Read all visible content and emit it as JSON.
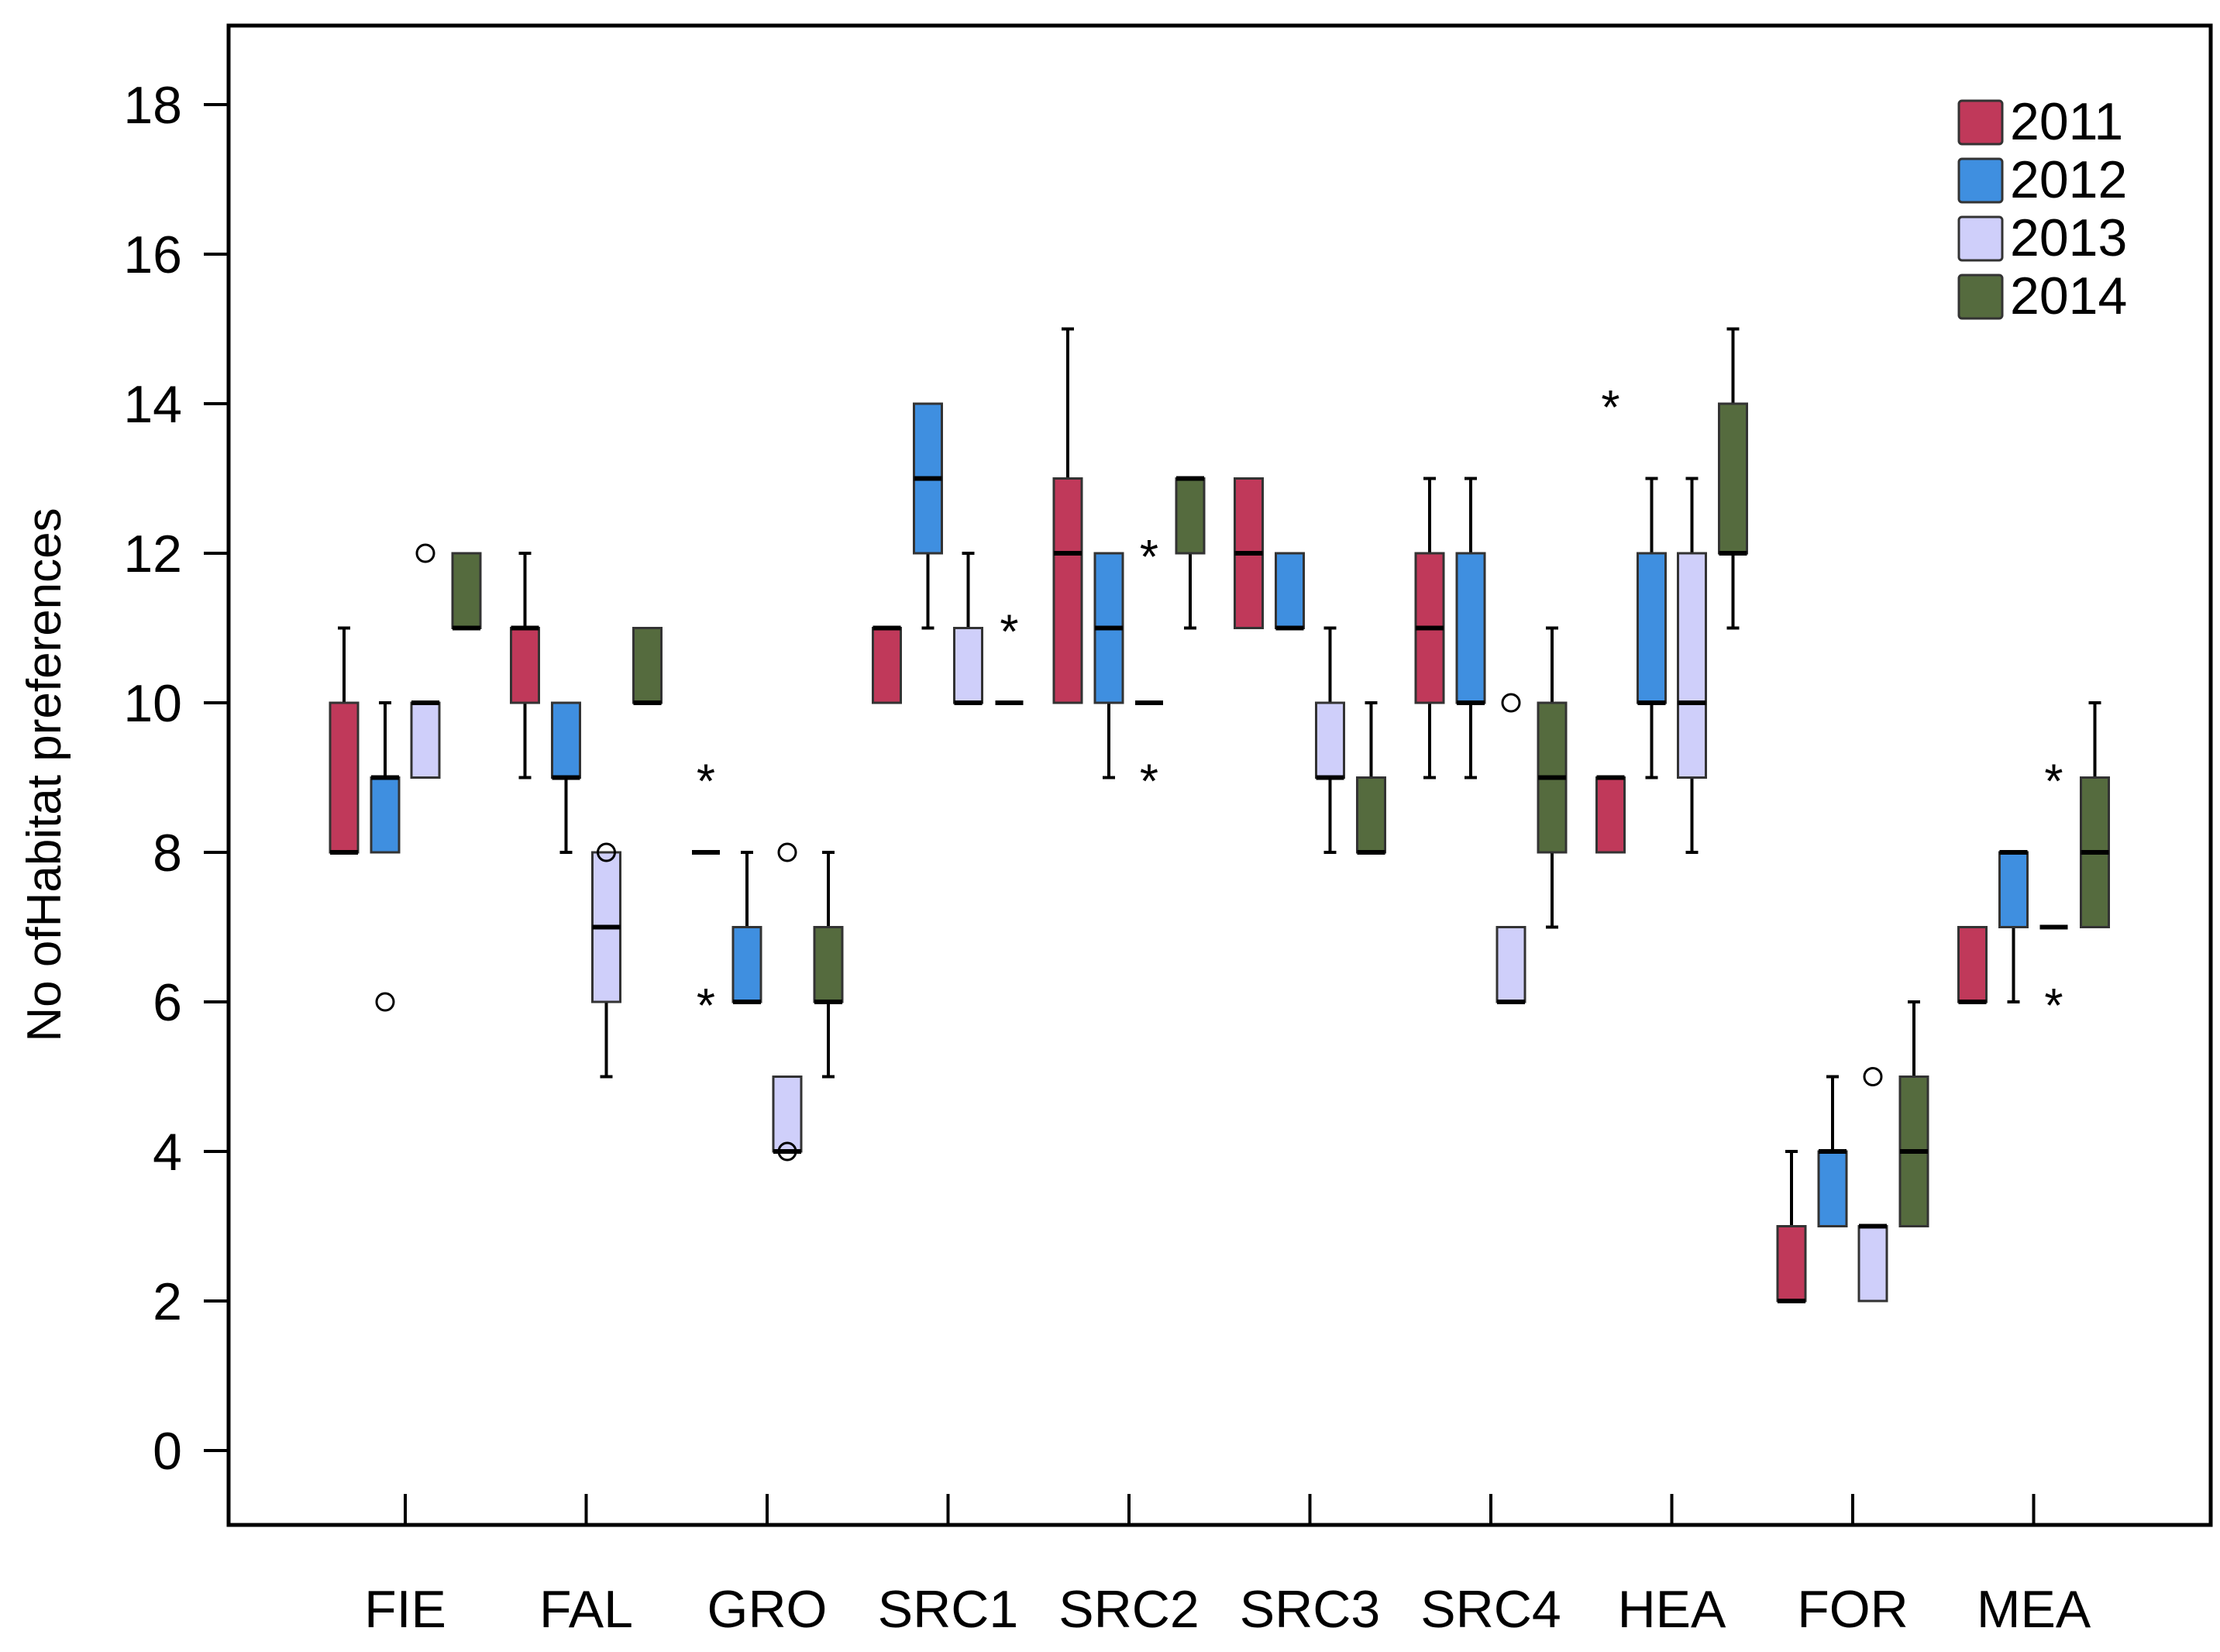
{
  "chart_data": {
    "type": "boxplot",
    "ylabel": "No ofHabitat preferences",
    "xlabel": "",
    "ylim": [
      -1,
      19
    ],
    "yticks": [
      0,
      2,
      4,
      6,
      8,
      10,
      12,
      14,
      16,
      18
    ],
    "legend_position": "top-right",
    "categories": [
      "FIE",
      "FAL",
      "GRO",
      "SRC1",
      "SRC2",
      "SRC3",
      "SRC4",
      "HEA",
      "FOR",
      "MEA"
    ],
    "series": [
      {
        "name": "2011",
        "color": "#C0395A"
      },
      {
        "name": "2012",
        "color": "#3F8FE0"
      },
      {
        "name": "2013",
        "color": "#CFCFFA"
      },
      {
        "name": "2014",
        "color": "#556B3E"
      }
    ],
    "boxes": [
      {
        "category": "FIE",
        "series": "2011",
        "whisker_low": 8,
        "q1": 8,
        "median": 8,
        "q3": 10,
        "whisker_high": 11,
        "outliers": [],
        "extremes": []
      },
      {
        "category": "FIE",
        "series": "2012",
        "whisker_low": 8,
        "q1": 8,
        "median": 9,
        "q3": 9,
        "whisker_high": 10,
        "outliers": [
          6
        ],
        "extremes": []
      },
      {
        "category": "FIE",
        "series": "2013",
        "whisker_low": 9,
        "q1": 9,
        "median": 10,
        "q3": 10,
        "whisker_high": 10,
        "outliers": [
          12
        ],
        "extremes": []
      },
      {
        "category": "FIE",
        "series": "2014",
        "whisker_low": 11,
        "q1": 11,
        "median": 11,
        "q3": 12,
        "whisker_high": 12,
        "outliers": [],
        "extremes": []
      },
      {
        "category": "FAL",
        "series": "2011",
        "whisker_low": 9,
        "q1": 10,
        "median": 11,
        "q3": 11,
        "whisker_high": 12,
        "outliers": [],
        "extremes": []
      },
      {
        "category": "FAL",
        "series": "2012",
        "whisker_low": 8,
        "q1": 9,
        "median": 9,
        "q3": 10,
        "whisker_high": 10,
        "outliers": [],
        "extremes": []
      },
      {
        "category": "FAL",
        "series": "2013",
        "whisker_low": 5,
        "q1": 6,
        "median": 7,
        "q3": 8,
        "whisker_high": 8,
        "outliers": [
          8
        ],
        "extremes": []
      },
      {
        "category": "FAL",
        "series": "2014",
        "whisker_low": 10,
        "q1": 10,
        "median": 10,
        "q3": 11,
        "whisker_high": 11,
        "outliers": [],
        "extremes": []
      },
      {
        "category": "GRO",
        "series": "2011",
        "whisker_low": 8,
        "q1": 8,
        "median": 8,
        "q3": 8,
        "whisker_high": 8,
        "outliers": [],
        "extremes": [
          9,
          6
        ]
      },
      {
        "category": "GRO",
        "series": "2012",
        "whisker_low": 6,
        "q1": 6,
        "median": 6,
        "q3": 7,
        "whisker_high": 8,
        "outliers": [],
        "extremes": []
      },
      {
        "category": "GRO",
        "series": "2013",
        "whisker_low": 4,
        "q1": 4,
        "median": 4,
        "q3": 5,
        "whisker_high": 5,
        "outliers": [
          8,
          4
        ],
        "extremes": []
      },
      {
        "category": "GRO",
        "series": "2014",
        "whisker_low": 5,
        "q1": 6,
        "median": 6,
        "q3": 7,
        "whisker_high": 8,
        "outliers": [],
        "extremes": []
      },
      {
        "category": "SRC1",
        "series": "2011",
        "whisker_low": 10,
        "q1": 10,
        "median": 11,
        "q3": 11,
        "whisker_high": 11,
        "outliers": [],
        "extremes": []
      },
      {
        "category": "SRC1",
        "series": "2012",
        "whisker_low": 11,
        "q1": 12,
        "median": 13,
        "q3": 14,
        "whisker_high": 14,
        "outliers": [],
        "extremes": []
      },
      {
        "category": "SRC1",
        "series": "2013",
        "whisker_low": 10,
        "q1": 10,
        "median": 10,
        "q3": 11,
        "whisker_high": 12,
        "outliers": [],
        "extremes": []
      },
      {
        "category": "SRC1",
        "series": "2014",
        "whisker_low": 10,
        "q1": 10,
        "median": 10,
        "q3": 10,
        "whisker_high": 10,
        "outliers": [],
        "extremes": [
          11
        ]
      },
      {
        "category": "SRC2",
        "series": "2011",
        "whisker_low": 10,
        "q1": 10,
        "median": 12,
        "q3": 13,
        "whisker_high": 15,
        "outliers": [],
        "extremes": []
      },
      {
        "category": "SRC2",
        "series": "2012",
        "whisker_low": 9,
        "q1": 10,
        "median": 11,
        "q3": 12,
        "whisker_high": 12,
        "outliers": [],
        "extremes": []
      },
      {
        "category": "SRC2",
        "series": "2013",
        "whisker_low": 10,
        "q1": 10,
        "median": 10,
        "q3": 10,
        "whisker_high": 10,
        "outliers": [],
        "extremes": [
          12,
          9
        ]
      },
      {
        "category": "SRC2",
        "series": "2014",
        "whisker_low": 11,
        "q1": 12,
        "median": 13,
        "q3": 13,
        "whisker_high": 13,
        "outliers": [],
        "extremes": []
      },
      {
        "category": "SRC3",
        "series": "2011",
        "whisker_low": 11,
        "q1": 11,
        "median": 12,
        "q3": 13,
        "whisker_high": 13,
        "outliers": [],
        "extremes": []
      },
      {
        "category": "SRC3",
        "series": "2012",
        "whisker_low": 11,
        "q1": 11,
        "median": 11,
        "q3": 12,
        "whisker_high": 12,
        "outliers": [],
        "extremes": []
      },
      {
        "category": "SRC3",
        "series": "2013",
        "whisker_low": 8,
        "q1": 9,
        "median": 9,
        "q3": 10,
        "whisker_high": 11,
        "outliers": [],
        "extremes": []
      },
      {
        "category": "SRC3",
        "series": "2014",
        "whisker_low": 8,
        "q1": 8,
        "median": 8,
        "q3": 9,
        "whisker_high": 10,
        "outliers": [],
        "extremes": []
      },
      {
        "category": "SRC4",
        "series": "2011",
        "whisker_low": 9,
        "q1": 10,
        "median": 11,
        "q3": 12,
        "whisker_high": 13,
        "outliers": [],
        "extremes": []
      },
      {
        "category": "SRC4",
        "series": "2012",
        "whisker_low": 9,
        "q1": 10,
        "median": 10,
        "q3": 12,
        "whisker_high": 13,
        "outliers": [],
        "extremes": []
      },
      {
        "category": "SRC4",
        "series": "2013",
        "whisker_low": 6,
        "q1": 6,
        "median": 6,
        "q3": 7,
        "whisker_high": 7,
        "outliers": [
          10
        ],
        "extremes": []
      },
      {
        "category": "SRC4",
        "series": "2014",
        "whisker_low": 7,
        "q1": 8,
        "median": 9,
        "q3": 10,
        "whisker_high": 11,
        "outliers": [],
        "extremes": []
      },
      {
        "category": "HEA",
        "series": "2011",
        "whisker_low": 8,
        "q1": 8,
        "median": 9,
        "q3": 9,
        "whisker_high": 9,
        "outliers": [],
        "extremes": [
          14
        ]
      },
      {
        "category": "HEA",
        "series": "2012",
        "whisker_low": 9,
        "q1": 10,
        "median": 10,
        "q3": 12,
        "whisker_high": 13,
        "outliers": [],
        "extremes": []
      },
      {
        "category": "HEA",
        "series": "2013",
        "whisker_low": 8,
        "q1": 9,
        "median": 10,
        "q3": 12,
        "whisker_high": 13,
        "outliers": [],
        "extremes": []
      },
      {
        "category": "HEA",
        "series": "2014",
        "whisker_low": 11,
        "q1": 12,
        "median": 12,
        "q3": 14,
        "whisker_high": 15,
        "outliers": [],
        "extremes": []
      },
      {
        "category": "FOR",
        "series": "2011",
        "whisker_low": 2,
        "q1": 2,
        "median": 2,
        "q3": 3,
        "whisker_high": 4,
        "outliers": [],
        "extremes": []
      },
      {
        "category": "FOR",
        "series": "2012",
        "whisker_low": 3,
        "q1": 3,
        "median": 4,
        "q3": 4,
        "whisker_high": 5,
        "outliers": [],
        "extremes": []
      },
      {
        "category": "FOR",
        "series": "2013",
        "whisker_low": 2,
        "q1": 2,
        "median": 3,
        "q3": 3,
        "whisker_high": 3,
        "outliers": [
          5
        ],
        "extremes": []
      },
      {
        "category": "FOR",
        "series": "2014",
        "whisker_low": 3,
        "q1": 3,
        "median": 4,
        "q3": 5,
        "whisker_high": 6,
        "outliers": [],
        "extremes": []
      },
      {
        "category": "MEA",
        "series": "2011",
        "whisker_low": 6,
        "q1": 6,
        "median": 6,
        "q3": 7,
        "whisker_high": 7,
        "outliers": [],
        "extremes": []
      },
      {
        "category": "MEA",
        "series": "2012",
        "whisker_low": 6,
        "q1": 7,
        "median": 8,
        "q3": 8,
        "whisker_high": 8,
        "outliers": [],
        "extremes": []
      },
      {
        "category": "MEA",
        "series": "2013",
        "whisker_low": 7,
        "q1": 7,
        "median": 7,
        "q3": 7,
        "whisker_high": 7,
        "outliers": [],
        "extremes": [
          9,
          6
        ]
      },
      {
        "category": "MEA",
        "series": "2014",
        "whisker_low": 7,
        "q1": 7,
        "median": 8,
        "q3": 9,
        "whisker_high": 10,
        "outliers": [],
        "extremes": []
      }
    ]
  }
}
